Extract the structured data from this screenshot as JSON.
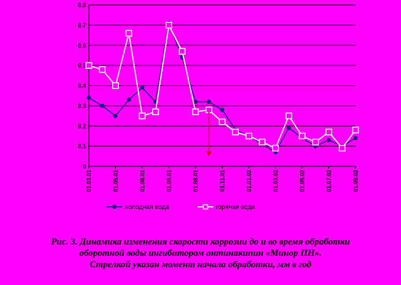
{
  "chart_data": {
    "type": "line",
    "title": "",
    "xlabel": "",
    "ylabel": "",
    "ylim": [
      0,
      0.8
    ],
    "yticks": [
      "0",
      "0,1",
      "0,2",
      "0,3",
      "0,4",
      "0,5",
      "0,6",
      "0,7",
      "0,8"
    ],
    "grid": true,
    "legend_position": "bottom",
    "x_tick_labels": [
      "01.03.01",
      "01.05.01",
      "01.08.01",
      "01.09.01",
      "01.08.01",
      "01.11.01",
      "01.01.02",
      "01.03.02",
      "01.05.02",
      "01.07.02",
      "01.09.02"
    ],
    "x_tick_positions": [
      0,
      2,
      4,
      6,
      8,
      10,
      12,
      14,
      16,
      18,
      20
    ],
    "series": [
      {
        "name": "холодная вода",
        "color": "#1a237e",
        "marker": "circle",
        "x": [
          0,
          1,
          2,
          3,
          4,
          5,
          6,
          7,
          8,
          9,
          10,
          11,
          12,
          13,
          14,
          15,
          16,
          17,
          18,
          19,
          20
        ],
        "values": [
          0.34,
          0.3,
          0.25,
          0.33,
          0.39,
          0.32,
          0.71,
          0.54,
          0.32,
          0.32,
          0.28,
          0.18,
          0.15,
          0.11,
          0.07,
          0.19,
          0.14,
          0.1,
          0.13,
          0.1,
          0.14
        ]
      },
      {
        "name": "горячая вода",
        "color": "#ffffff",
        "marker": "square",
        "x": [
          0,
          1,
          2,
          3,
          4,
          5,
          6,
          7,
          8,
          9,
          10,
          11,
          12,
          13,
          14,
          15,
          16,
          17,
          18,
          19,
          20
        ],
        "values": [
          0.5,
          0.48,
          0.4,
          0.66,
          0.25,
          0.27,
          0.7,
          0.57,
          0.27,
          0.28,
          0.22,
          0.17,
          0.15,
          0.12,
          0.09,
          0.25,
          0.15,
          0.12,
          0.17,
          0.09,
          0.18
        ]
      }
    ],
    "annotation": {
      "type": "arrow",
      "color": "#cc0000",
      "x": 9,
      "from": 0.27,
      "to": 0.05,
      "meaning": "начало обработки"
    }
  },
  "caption": {
    "line1": "Рис. 3. Динамика изменения скорости коррозии до и во время обработки",
    "line2": "оборотной воды ингибитором антинакипин «Минор ПН».",
    "line3": "Стрелкой указан момент начала обработки, мм в год"
  }
}
